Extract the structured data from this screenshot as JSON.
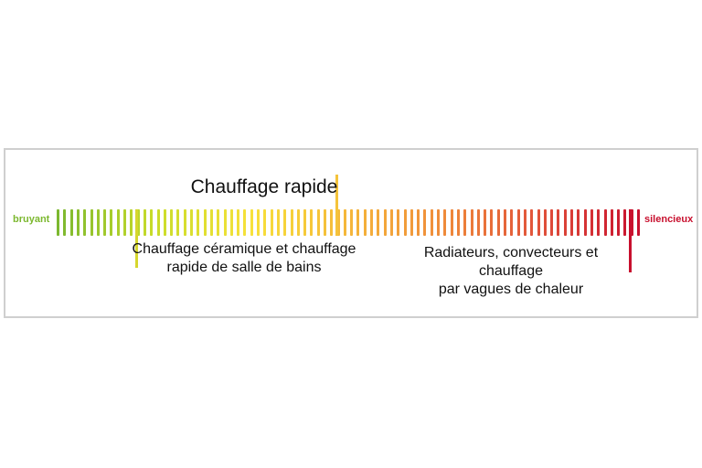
{
  "scale": {
    "left_label": "bruyant",
    "right_label": "silencieux",
    "left_color": "#7cb82f",
    "right_color": "#c8102e",
    "bar_count": 88,
    "gradient_stops": [
      "#7cb82f",
      "#c9dc2a",
      "#f7e13a",
      "#f5b73a",
      "#ef8a3a",
      "#e0503a",
      "#c8102e"
    ]
  },
  "markers": [
    {
      "id": "ceramique",
      "position": 0.135,
      "color": "#d6d62e",
      "direction": "down"
    },
    {
      "id": "rapide",
      "position": 0.48,
      "color": "#f5c33a",
      "direction": "up"
    },
    {
      "id": "radiateurs",
      "position": 0.985,
      "color": "#c8102e",
      "direction": "down"
    }
  ],
  "captions": {
    "top": "Chauffage rapide",
    "left": [
      "Chauffage céramique et chauffage",
      "rapide de salle de bains"
    ],
    "right": [
      "Radiateurs, convecteurs et chauffage",
      "par vagues de chaleur"
    ]
  }
}
